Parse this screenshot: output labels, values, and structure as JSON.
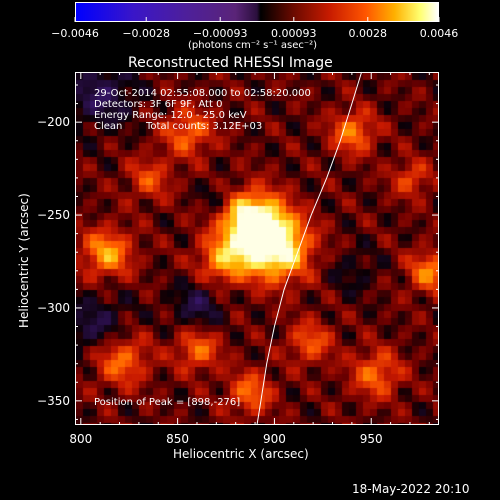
{
  "colorbar": {
    "tick_labels": [
      "−0.0046",
      "−0.0028",
      "−0.00093",
      "0.00093",
      "0.0028",
      "0.0046"
    ],
    "unit_label": "(photons cm⁻² s⁻¹ asec⁻²)",
    "range": [
      -0.0046,
      0.0046
    ]
  },
  "title": "Reconstructed RHESSI Image",
  "info": {
    "time_range": "29-Oct-2014 02:55:08.000 to 02:58:20.000",
    "detectors": "Detectors: 3F 6F 9F, Att 0",
    "energy": "Energy Range: 12.0 - 25.0 keV",
    "clean_label": "Clean",
    "total_counts": "Total counts: 3.12E+03",
    "peak": "Position of Peak = [898,-276]"
  },
  "footer": {
    "date": "18-May-2022 20:10"
  },
  "chart_data": {
    "type": "heatmap",
    "title": "Reconstructed RHESSI Image",
    "xlabel": "Heliocentric X (arcsec)",
    "ylabel": "Heliocentric Y (arcsec)",
    "xlim": [
      797,
      985
    ],
    "ylim": [
      -363,
      -173
    ],
    "x_ticks": [
      800,
      850,
      900,
      950
    ],
    "x_tick_labels": [
      "800",
      "850",
      "900",
      "950"
    ],
    "y_ticks": [
      -200,
      -250,
      -300,
      -350
    ],
    "y_tick_labels": [
      "−200",
      "−250",
      "−300",
      "−350"
    ],
    "peak": {
      "x": 898,
      "y": -276
    },
    "limb_curve": [
      [
        945,
        -173
      ],
      [
        940,
        -190
      ],
      [
        934,
        -210
      ],
      [
        927,
        -230
      ],
      [
        919,
        -250
      ],
      [
        912,
        -270
      ],
      [
        905,
        -290
      ],
      [
        900,
        -310
      ],
      [
        896,
        -330
      ],
      [
        893,
        -350
      ],
      [
        891,
        -363
      ]
    ],
    "sources": [
      {
        "x": 888,
        "y": -253,
        "sigma": 11,
        "amp": 1.0
      },
      {
        "x": 900,
        "y": -267,
        "sigma": 12,
        "amp": 1.0
      },
      {
        "x": 873,
        "y": -274,
        "sigma": 9,
        "amp": 0.55
      },
      {
        "x": 813,
        "y": -270,
        "sigma": 9,
        "amp": 0.6
      },
      {
        "x": 855,
        "y": -205,
        "sigma": 9,
        "amp": 0.45
      },
      {
        "x": 940,
        "y": -205,
        "sigma": 8,
        "amp": 0.5
      },
      {
        "x": 820,
        "y": -327,
        "sigma": 10,
        "amp": 0.5
      },
      {
        "x": 860,
        "y": -322,
        "sigma": 8,
        "amp": 0.45
      },
      {
        "x": 887,
        "y": -345,
        "sigma": 8,
        "amp": 0.45
      },
      {
        "x": 980,
        "y": -280,
        "sigma": 8,
        "amp": 0.5
      },
      {
        "x": 952,
        "y": -335,
        "sigma": 9,
        "amp": 0.45
      },
      {
        "x": 918,
        "y": -318,
        "sigma": 8,
        "amp": 0.4
      },
      {
        "x": 835,
        "y": -230,
        "sigma": 8,
        "amp": 0.35
      },
      {
        "x": 970,
        "y": -230,
        "sigma": 7,
        "amp": 0.35
      }
    ],
    "dark_regions": [
      {
        "x": 810,
        "y": -185,
        "sigma": 12,
        "amp": -0.35
      },
      {
        "x": 808,
        "y": -310,
        "sigma": 12,
        "amp": -0.3
      },
      {
        "x": 860,
        "y": -298,
        "sigma": 9,
        "amp": -0.3
      },
      {
        "x": 870,
        "y": -240,
        "sigma": 6,
        "amp": -0.2
      },
      {
        "x": 940,
        "y": -280,
        "sigma": 9,
        "amp": -0.15
      }
    ]
  }
}
